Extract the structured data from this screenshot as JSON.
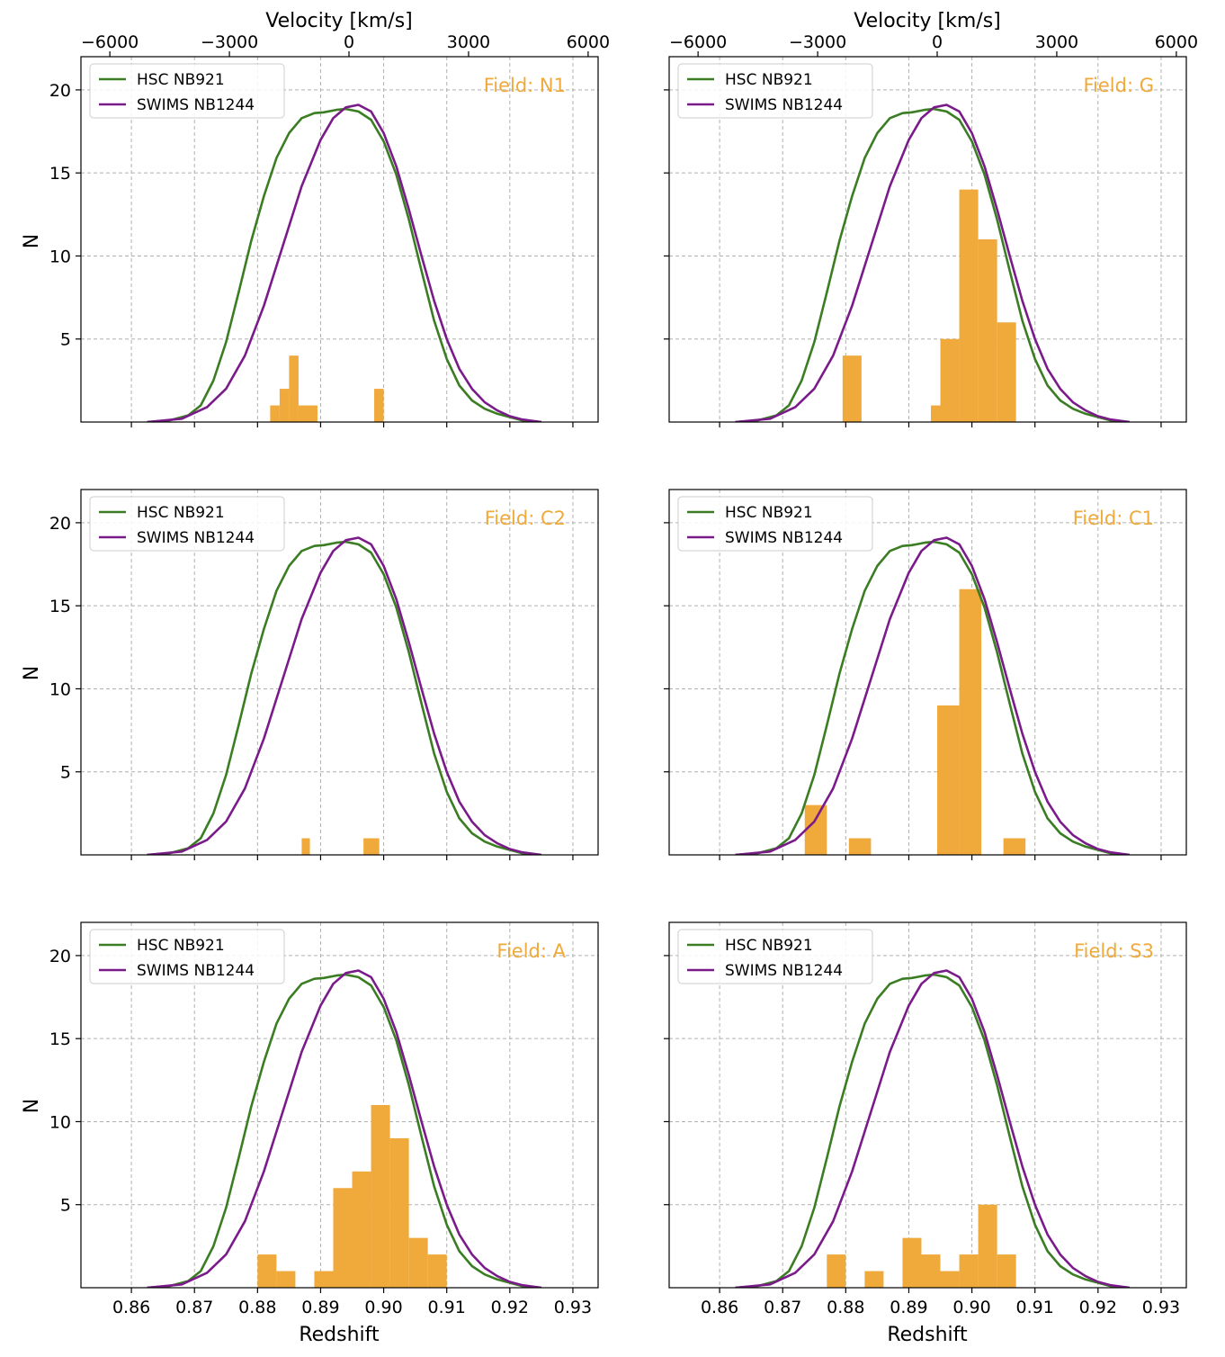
{
  "figure_colors": {
    "hsc_curve": "#3a7d22",
    "swims_curve": "#7a1b8a",
    "histogram": "#f0a93b",
    "field_label": "#f0a93b",
    "grid": "#b0b0b0"
  },
  "shared": {
    "xlabel": "Redshift",
    "ylabel": "N",
    "top_xlabel": "Velocity [km/s]",
    "xlim": [
      0.852,
      0.934
    ],
    "ylim": [
      0,
      22
    ],
    "x_ticks": [
      0.86,
      0.87,
      0.88,
      0.89,
      0.9,
      0.91,
      0.92,
      0.93
    ],
    "x_tick_labels": [
      "0.86",
      "0.87",
      "0.88",
      "0.89",
      "0.90",
      "0.91",
      "0.92",
      "0.93"
    ],
    "y_ticks": [
      5,
      10,
      15,
      20
    ],
    "y_tick_labels": [
      "5",
      "10",
      "15",
      "20"
    ],
    "velocity_ticks": [
      -6000,
      -3000,
      0,
      3000,
      6000
    ],
    "velocity_tick_labels": [
      "−6000",
      "−3000",
      "0",
      "3000",
      "6000"
    ],
    "velocity_zero_redshift": 0.8945,
    "legend": [
      {
        "label": "HSC NB921",
        "color": "#3a7d22"
      },
      {
        "label": "SWIMS NB1244",
        "color": "#7a1b8a"
      }
    ],
    "filter_curves": {
      "hsc_nb921": {
        "z": [
          0.8625,
          0.866,
          0.869,
          0.871,
          0.873,
          0.875,
          0.877,
          0.879,
          0.881,
          0.883,
          0.885,
          0.887,
          0.889,
          0.8905,
          0.8925,
          0.894,
          0.896,
          0.898,
          0.9,
          0.902,
          0.904,
          0.906,
          0.908,
          0.91,
          0.912,
          0.914,
          0.916,
          0.918,
          0.92,
          0.922,
          0.925
        ],
        "n": [
          0,
          0.1,
          0.4,
          1.0,
          2.5,
          4.8,
          7.8,
          10.9,
          13.6,
          15.9,
          17.4,
          18.3,
          18.6,
          18.65,
          18.8,
          18.85,
          18.7,
          18.2,
          16.9,
          14.9,
          12.2,
          9.1,
          6.1,
          3.8,
          2.2,
          1.3,
          0.8,
          0.5,
          0.3,
          0.1,
          0
        ]
      },
      "swims_nb1244": {
        "z": [
          0.8625,
          0.868,
          0.872,
          0.875,
          0.878,
          0.881,
          0.884,
          0.887,
          0.89,
          0.892,
          0.894,
          0.896,
          0.898,
          0.9,
          0.902,
          0.904,
          0.906,
          0.908,
          0.91,
          0.912,
          0.914,
          0.916,
          0.918,
          0.92,
          0.922,
          0.925
        ],
        "n": [
          0,
          0.2,
          0.9,
          2.0,
          4.0,
          7.0,
          10.6,
          14.2,
          17.0,
          18.3,
          18.95,
          19.1,
          18.7,
          17.4,
          15.4,
          12.8,
          10.0,
          7.3,
          5.0,
          3.2,
          2.0,
          1.2,
          0.7,
          0.35,
          0.15,
          0
        ]
      }
    }
  },
  "chart_data": [
    {
      "type": "bar",
      "panel": "N1",
      "field_label": "Field: N1",
      "bins": [
        {
          "x0": 0.882,
          "x1": 0.8835,
          "count": 1
        },
        {
          "x0": 0.8835,
          "x1": 0.885,
          "count": 2
        },
        {
          "x0": 0.885,
          "x1": 0.8865,
          "count": 4
        },
        {
          "x0": 0.8865,
          "x1": 0.8895,
          "count": 1
        },
        {
          "x0": 0.8985,
          "x1": 0.9,
          "count": 2
        }
      ]
    },
    {
      "type": "bar",
      "panel": "G",
      "field_label": "Field: G",
      "bins": [
        {
          "x0": 0.8795,
          "x1": 0.8825,
          "count": 4
        },
        {
          "x0": 0.8935,
          "x1": 0.895,
          "count": 1
        },
        {
          "x0": 0.895,
          "x1": 0.898,
          "count": 5
        },
        {
          "x0": 0.898,
          "x1": 0.901,
          "count": 14
        },
        {
          "x0": 0.901,
          "x1": 0.904,
          "count": 11
        },
        {
          "x0": 0.904,
          "x1": 0.907,
          "count": 6
        }
      ]
    },
    {
      "type": "bar",
      "panel": "C2",
      "field_label": "Field: C2",
      "bins": [
        {
          "x0": 0.887,
          "x1": 0.8883,
          "count": 1
        },
        {
          "x0": 0.8968,
          "x1": 0.8993,
          "count": 1
        }
      ]
    },
    {
      "type": "bar",
      "panel": "C1",
      "field_label": "Field: C1",
      "bins": [
        {
          "x0": 0.8735,
          "x1": 0.877,
          "count": 3
        },
        {
          "x0": 0.8805,
          "x1": 0.884,
          "count": 1
        },
        {
          "x0": 0.8945,
          "x1": 0.898,
          "count": 9
        },
        {
          "x0": 0.898,
          "x1": 0.9015,
          "count": 16
        },
        {
          "x0": 0.905,
          "x1": 0.9085,
          "count": 1
        }
      ]
    },
    {
      "type": "bar",
      "panel": "A",
      "field_label": "Field: A",
      "bins": [
        {
          "x0": 0.88,
          "x1": 0.883,
          "count": 2
        },
        {
          "x0": 0.883,
          "x1": 0.886,
          "count": 1
        },
        {
          "x0": 0.889,
          "x1": 0.892,
          "count": 1
        },
        {
          "x0": 0.892,
          "x1": 0.895,
          "count": 6
        },
        {
          "x0": 0.895,
          "x1": 0.898,
          "count": 7
        },
        {
          "x0": 0.898,
          "x1": 0.901,
          "count": 11
        },
        {
          "x0": 0.901,
          "x1": 0.904,
          "count": 9
        },
        {
          "x0": 0.904,
          "x1": 0.907,
          "count": 3
        },
        {
          "x0": 0.907,
          "x1": 0.91,
          "count": 2
        }
      ]
    },
    {
      "type": "bar",
      "panel": "S3",
      "field_label": "Field: S3",
      "bins": [
        {
          "x0": 0.877,
          "x1": 0.88,
          "count": 2
        },
        {
          "x0": 0.883,
          "x1": 0.886,
          "count": 1
        },
        {
          "x0": 0.889,
          "x1": 0.892,
          "count": 3
        },
        {
          "x0": 0.892,
          "x1": 0.895,
          "count": 2
        },
        {
          "x0": 0.895,
          "x1": 0.898,
          "count": 1
        },
        {
          "x0": 0.898,
          "x1": 0.901,
          "count": 2
        },
        {
          "x0": 0.901,
          "x1": 0.904,
          "count": 5
        },
        {
          "x0": 0.904,
          "x1": 0.907,
          "count": 2
        }
      ]
    }
  ]
}
